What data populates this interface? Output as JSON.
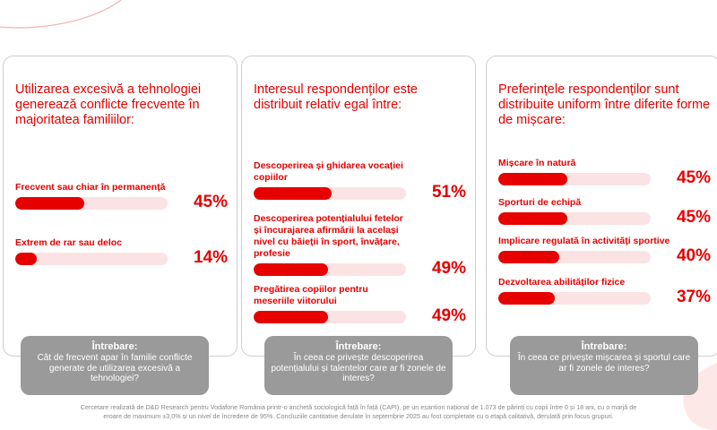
{
  "colors": {
    "accent": "#e60000",
    "track": "#fbe3e3",
    "question_bg": "#9a9a9a",
    "footer_text": "#888888"
  },
  "chart_data": [
    {
      "type": "bar",
      "title": "Utilizarea excesivă a tehnologiei generează conflicte frecvente în majoritatea familiilor:",
      "categories": [
        "Frecvent sau chiar în permanență",
        "Extrem de rar sau deloc"
      ],
      "values": [
        45,
        14
      ],
      "value_labels": [
        "45%",
        "14%"
      ],
      "ylim": [
        0,
        100
      ],
      "question_label": "Întrebare:",
      "question": "Cât de frecvent apar în familie conflicte generate de utilizarea excesivă a tehnologiei?"
    },
    {
      "type": "bar",
      "title": "Interesul respondenților este distribuit relativ egal între:",
      "categories": [
        "Descoperirea și ghidarea vocației copiilor",
        "Descoperirea potențialului fetelor și încurajarea afirmării la același nivel cu băieții în sport, învățare, profesie",
        "Pregătirea copiilor pentru meseriile viitorului"
      ],
      "values": [
        51,
        49,
        49
      ],
      "value_labels": [
        "51%",
        "49%",
        "49%"
      ],
      "ylim": [
        0,
        100
      ],
      "question_label": "Întrebare:",
      "question": "În ceea ce privește descoperirea potențialului și talentelor care ar fi zonele de interes?"
    },
    {
      "type": "bar",
      "title": "Preferințele respondenților sunt distribuite uniform între diferite forme de mișcare:",
      "categories": [
        "Mișcare în natură",
        "Sporturi de echipă",
        "Implicare regulată în activități sportive",
        "Dezvoltarea abilităților fizice"
      ],
      "values": [
        45,
        45,
        40,
        37
      ],
      "value_labels": [
        "45%",
        "45%",
        "40%",
        "37%"
      ],
      "ylim": [
        0,
        100
      ],
      "question_label": "Întrebare:",
      "question": "În ceea ce privește mișcarea și sportul care ar fi zonele de interes?"
    }
  ],
  "footer": "Cercetare realizată de D&D Research pentru Vodafone România printr-o anchetă sociologică față în față (CAPI), pe un eșantion național de 1.073 de părinți cu copii între 0 și 18 ani, cu o marjă de eroare de maximum ±3,0% și un nivel de încredere de 95%. Concluziile cantitative derulate în septembrie 2025 au fost completate cu o etapă calitativă, derulată prin focus grupuri."
}
